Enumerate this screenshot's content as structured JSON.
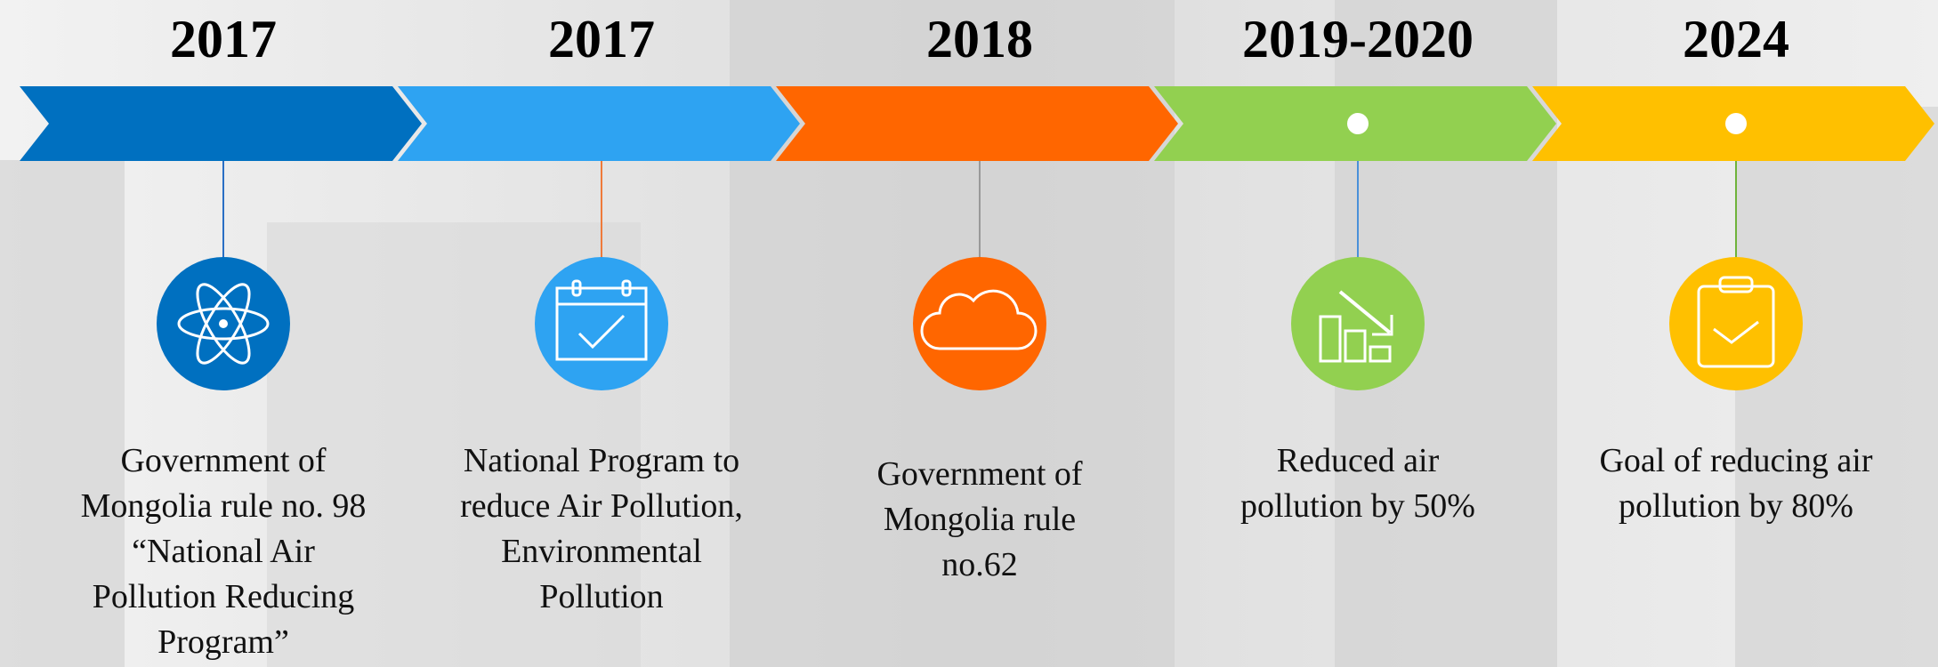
{
  "items": [
    {
      "year": "2017",
      "lines": [
        "Government of",
        "Mongolia rule no. 98",
        "“National Air",
        "Pollution Reducing",
        "Program”"
      ]
    },
    {
      "year": "2017",
      "lines": [
        "National Program to",
        "reduce Air Pollution,",
        "Environmental",
        "Pollution"
      ]
    },
    {
      "year": "2018",
      "lines": [
        "Government of",
        "Mongolia rule",
        "no.62"
      ]
    },
    {
      "year": "2019-2020",
      "lines": [
        "Reduced air",
        "pollution by 50%"
      ]
    },
    {
      "year": "2024",
      "lines": [
        "Goal of reducing air",
        "pollution by 80%"
      ]
    }
  ]
}
